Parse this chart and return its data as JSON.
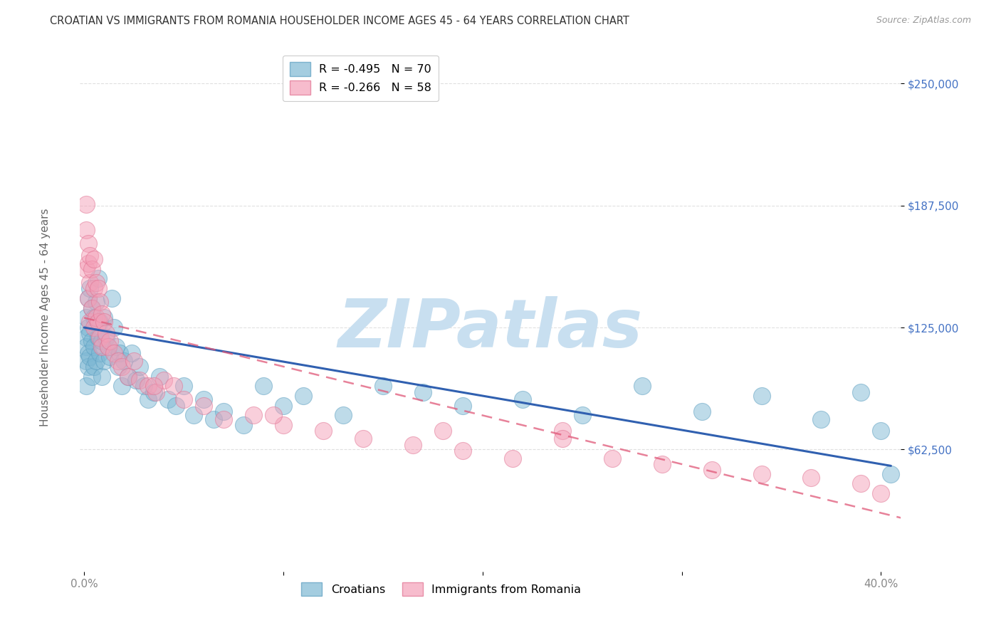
{
  "title": "CROATIAN VS IMMIGRANTS FROM ROMANIA HOUSEHOLDER INCOME AGES 45 - 64 YEARS CORRELATION CHART",
  "source": "Source: ZipAtlas.com",
  "ylabel": "Householder Income Ages 45 - 64 years",
  "ytick_labels": [
    "$62,500",
    "$125,000",
    "$187,500",
    "$250,000"
  ],
  "ytick_values": [
    62500,
    125000,
    187500,
    250000
  ],
  "ymin": 0,
  "ymax": 270000,
  "xmin": -0.002,
  "xmax": 0.41,
  "watermark": "ZIPatlas",
  "watermark_color": "#c8dff0",
  "croatian_color": "#7eb8d4",
  "croatia_edge_color": "#5a9dbf",
  "romania_color": "#f4a0b8",
  "romania_edge_color": "#e07090",
  "trendline_croatian_color": "#3060b0",
  "trendline_romania_color": "#e05878",
  "background_color": "#ffffff",
  "grid_color": "#dddddd",
  "title_color": "#333333",
  "axis_label_color": "#666666",
  "ytick_color": "#4472c4",
  "xtick_color": "#888888",
  "title_fontsize": 10.5,
  "source_fontsize": 9,
  "legend_top_labels": [
    "R = -0.495   N = 70",
    "R = -0.266   N = 58"
  ],
  "legend_bottom_labels": [
    "Croatians",
    "Immigrants from Romania"
  ],
  "croatian_x": [
    0.001,
    0.001,
    0.001,
    0.001,
    0.001,
    0.002,
    0.002,
    0.002,
    0.002,
    0.003,
    0.003,
    0.003,
    0.004,
    0.004,
    0.004,
    0.005,
    0.005,
    0.005,
    0.006,
    0.006,
    0.007,
    0.007,
    0.008,
    0.008,
    0.009,
    0.009,
    0.01,
    0.01,
    0.011,
    0.012,
    0.013,
    0.014,
    0.015,
    0.016,
    0.017,
    0.018,
    0.019,
    0.02,
    0.022,
    0.024,
    0.026,
    0.028,
    0.03,
    0.032,
    0.035,
    0.038,
    0.042,
    0.046,
    0.05,
    0.055,
    0.06,
    0.065,
    0.07,
    0.08,
    0.09,
    0.1,
    0.11,
    0.13,
    0.15,
    0.17,
    0.19,
    0.22,
    0.25,
    0.28,
    0.31,
    0.34,
    0.37,
    0.39,
    0.4,
    0.405
  ],
  "croatian_y": [
    120000,
    130000,
    115000,
    108000,
    95000,
    140000,
    125000,
    112000,
    105000,
    145000,
    122000,
    110000,
    135000,
    118000,
    100000,
    130000,
    115000,
    105000,
    138000,
    108000,
    150000,
    120000,
    128000,
    112000,
    118000,
    100000,
    130000,
    108000,
    120000,
    115000,
    110000,
    140000,
    125000,
    115000,
    105000,
    112000,
    95000,
    108000,
    100000,
    112000,
    98000,
    105000,
    95000,
    88000,
    92000,
    100000,
    88000,
    85000,
    95000,
    80000,
    88000,
    78000,
    82000,
    75000,
    95000,
    85000,
    90000,
    80000,
    95000,
    92000,
    85000,
    88000,
    80000,
    95000,
    82000,
    90000,
    78000,
    92000,
    72000,
    50000
  ],
  "romania_x": [
    0.001,
    0.001,
    0.001,
    0.002,
    0.002,
    0.002,
    0.003,
    0.003,
    0.003,
    0.004,
    0.004,
    0.005,
    0.005,
    0.005,
    0.006,
    0.006,
    0.007,
    0.007,
    0.008,
    0.008,
    0.009,
    0.009,
    0.01,
    0.011,
    0.012,
    0.013,
    0.015,
    0.017,
    0.019,
    0.022,
    0.025,
    0.028,
    0.032,
    0.036,
    0.04,
    0.045,
    0.05,
    0.06,
    0.07,
    0.085,
    0.1,
    0.12,
    0.14,
    0.165,
    0.19,
    0.215,
    0.24,
    0.265,
    0.29,
    0.315,
    0.34,
    0.365,
    0.39,
    0.4,
    0.24,
    0.18,
    0.095,
    0.035
  ],
  "romania_y": [
    188000,
    175000,
    155000,
    168000,
    158000,
    140000,
    162000,
    148000,
    128000,
    155000,
    135000,
    160000,
    145000,
    125000,
    148000,
    130000,
    145000,
    128000,
    138000,
    120000,
    132000,
    115000,
    128000,
    122000,
    115000,
    118000,
    112000,
    108000,
    105000,
    100000,
    108000,
    98000,
    95000,
    92000,
    98000,
    95000,
    88000,
    85000,
    78000,
    80000,
    75000,
    72000,
    68000,
    65000,
    62000,
    58000,
    72000,
    58000,
    55000,
    52000,
    50000,
    48000,
    45000,
    40000,
    68000,
    72000,
    80000,
    95000
  ]
}
